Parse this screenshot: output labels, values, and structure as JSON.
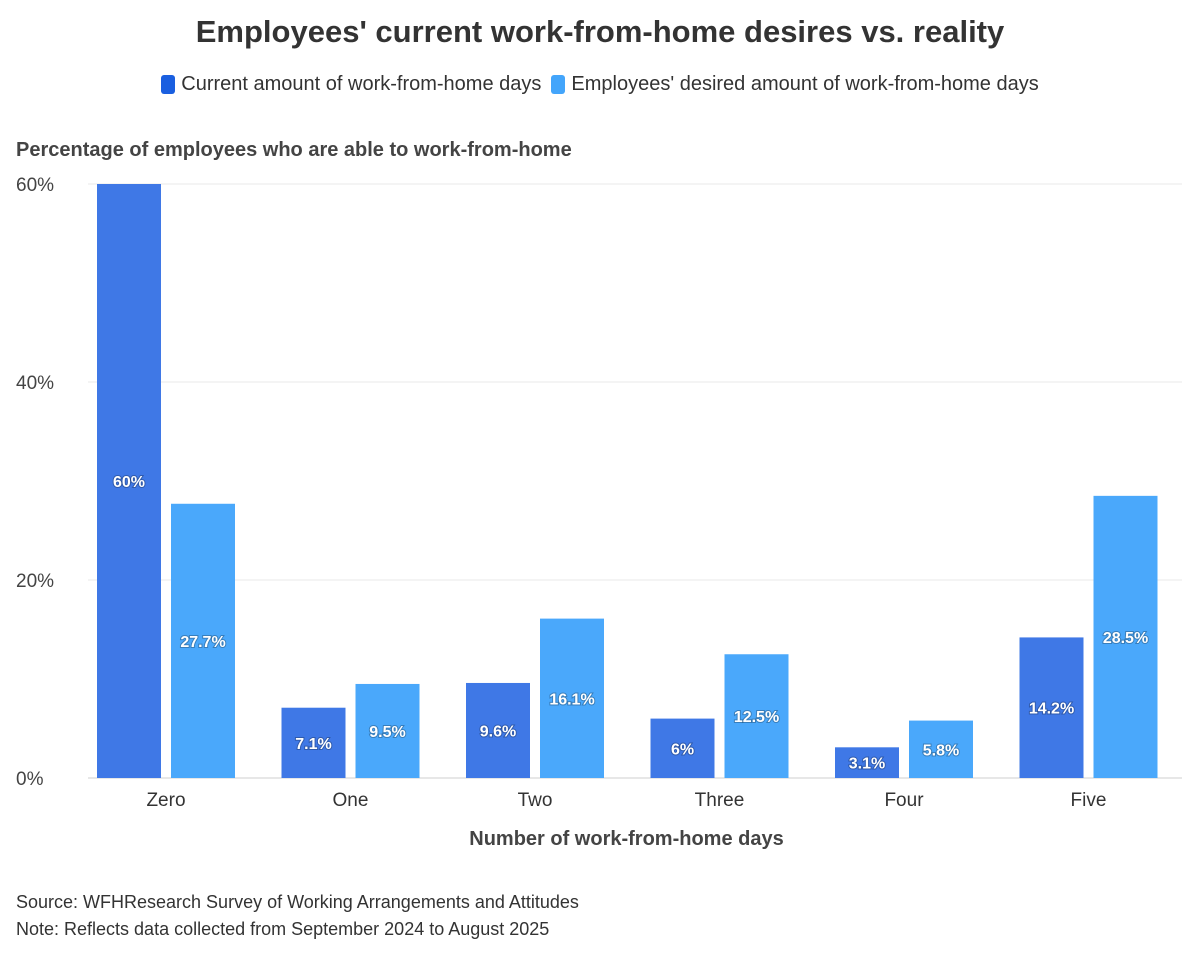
{
  "title": "Employees' current work-from-home desires vs. reality",
  "legend": [
    {
      "label": "Current amount of work-from-home days",
      "color": "#1a5fe0"
    },
    {
      "label": "Employees' desired amount of work-from-home days",
      "color": "#43a5fb"
    }
  ],
  "footer": {
    "source": "Source: WFHResearch Survey of Working Arrangements and Attitudes",
    "note": "Note: Reflects data collected from September 2024 to August 2025"
  },
  "chart_data": {
    "type": "bar",
    "title": "Employees' current work-from-home desires vs. reality",
    "ylabel": "Percentage of employees who are able to work-from-home",
    "xlabel": "Number of work-from-home days",
    "categories": [
      "Zero",
      "One",
      "Two",
      "Three",
      "Four",
      "Five"
    ],
    "series": [
      {
        "name": "Current amount of work-from-home days",
        "color": "#3f78e6",
        "values": [
          60,
          7.1,
          9.6,
          6,
          3.1,
          14.2
        ],
        "labels": [
          "60%",
          "7.1%",
          "9.6%",
          "6%",
          "3.1%",
          "14.2%"
        ]
      },
      {
        "name": "Employees' desired amount of work-from-home days",
        "color": "#4aa8fb",
        "values": [
          27.7,
          9.5,
          16.1,
          12.5,
          5.8,
          28.5
        ],
        "labels": [
          "27.7%",
          "9.5%",
          "16.1%",
          "12.5%",
          "5.8%",
          "28.5%"
        ]
      }
    ],
    "ylim": [
      0,
      60
    ],
    "yticks": [
      0,
      20,
      40,
      60
    ],
    "ytick_labels": [
      "0%",
      "20%",
      "40%",
      "60%"
    ],
    "grid": true,
    "legend_position": "top-center"
  }
}
